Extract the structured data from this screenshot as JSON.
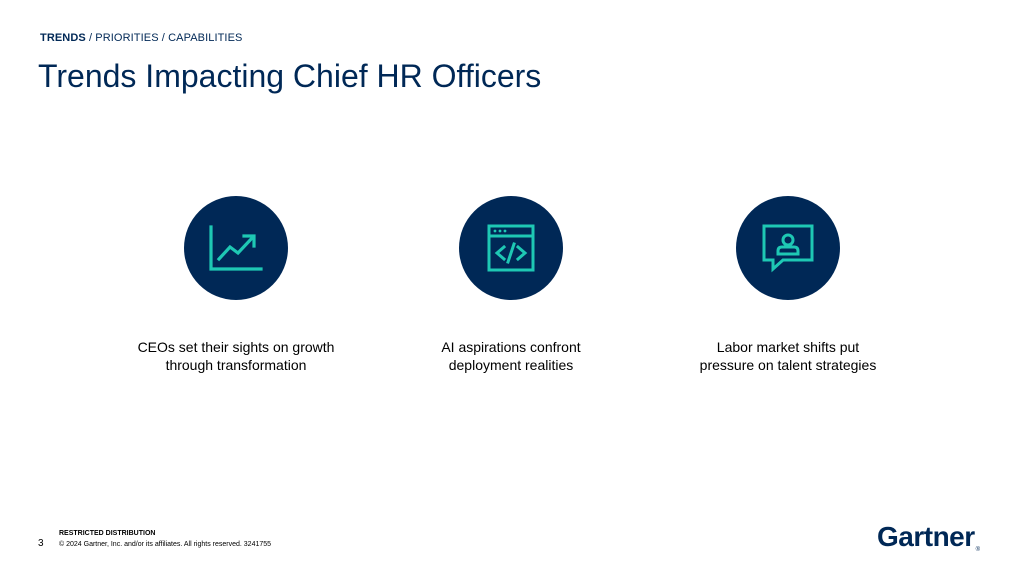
{
  "breadcrumb": {
    "active": "TRENDS",
    "rest": " / PRIORITIES / CAPABILITIES"
  },
  "title": "Trends Impacting Chief HR Officers",
  "trends": [
    {
      "icon": "growth-chart-icon",
      "line1": "CEOs set their sights on growth",
      "line2": "through transformation"
    },
    {
      "icon": "code-window-icon",
      "line1": "AI aspirations confront",
      "line2": "deployment realities"
    },
    {
      "icon": "person-speech-bubble-icon",
      "line1": "Labor market shifts put",
      "line2": "pressure on talent strategies"
    }
  ],
  "footer": {
    "label": "RESTRICTED DISTRIBUTION",
    "copyright": "© 2024 Gartner, Inc. and/or its affiliates. All rights reserved. 3241755",
    "page": "3"
  },
  "logo": {
    "text": "Gartner",
    "mark": "®"
  },
  "colors": {
    "navy": "#002856",
    "teal": "#1EC8B4"
  }
}
